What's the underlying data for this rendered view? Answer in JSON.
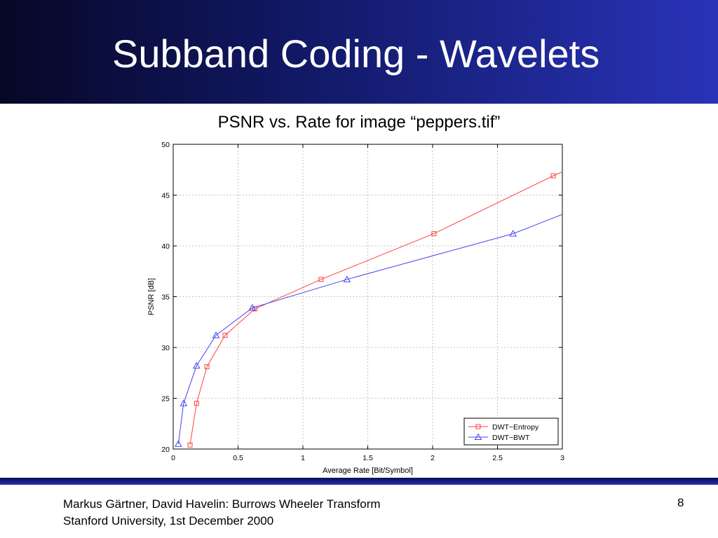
{
  "slide": {
    "title": "Subband Coding - Wavelets",
    "subtitle": "PSNR vs. Rate for image “peppers.tif”",
    "footer_line1": "Markus Gärtner, David Havelin: Burrows Wheeler Transform",
    "footer_line2": "Stanford University, 1st December 2000",
    "page_number": "8"
  },
  "chart_data": {
    "type": "line",
    "title": "",
    "xlabel": "Average Rate [Bit/Symbol]",
    "ylabel": "PSNR [dB]",
    "xlim": [
      0,
      3
    ],
    "ylim": [
      20,
      50
    ],
    "xticks": [
      0,
      0.5,
      1,
      1.5,
      2,
      2.5,
      3
    ],
    "xtick_labels": [
      "0",
      "0.5",
      "1",
      "1.5",
      "2",
      "2.5",
      "3"
    ],
    "yticks": [
      20,
      25,
      30,
      35,
      40,
      45,
      50
    ],
    "ytick_labels": [
      "20",
      "25",
      "30",
      "35",
      "40",
      "45",
      "50"
    ],
    "grid": true,
    "legend_position": "bottom-right",
    "series": [
      {
        "name": "DWT−Entropy",
        "color": "#ff4040",
        "marker": "square",
        "x": [
          0.13,
          0.18,
          0.26,
          0.4,
          0.63,
          1.14,
          2.01,
          2.93,
          3.0
        ],
        "y": [
          20.4,
          24.5,
          28.1,
          31.2,
          33.8,
          36.7,
          41.2,
          46.9,
          47.3
        ]
      },
      {
        "name": "DWT−BWT",
        "color": "#4444ee",
        "marker": "triangle",
        "x": [
          0.04,
          0.08,
          0.18,
          0.33,
          0.61,
          1.34,
          2.62,
          3.0
        ],
        "y": [
          20.5,
          24.5,
          28.2,
          31.2,
          33.9,
          36.7,
          41.2,
          43.1
        ]
      }
    ],
    "marker_x": {
      "DWT−Entropy": [
        0.13,
        0.18,
        0.26,
        0.4,
        0.63,
        1.14,
        2.01,
        2.93
      ],
      "DWT−BWT": [
        0.04,
        0.08,
        0.18,
        0.33,
        0.61,
        1.34,
        2.62
      ]
    }
  }
}
